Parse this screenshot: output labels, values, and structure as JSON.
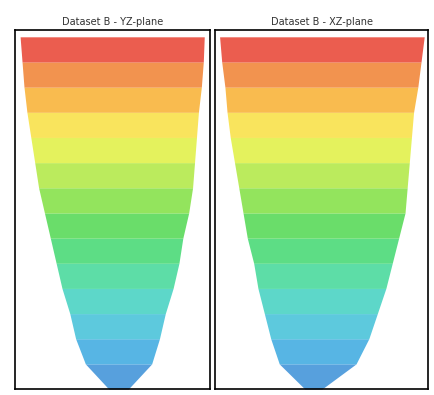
{
  "chart_data": [
    {
      "type": "area",
      "title": "Dataset B - YZ-plane",
      "y": [
        0,
        7,
        14,
        21,
        28,
        35,
        42,
        49,
        56,
        63,
        70,
        77,
        84,
        91,
        98
      ],
      "left": [
        48,
        36,
        31,
        28,
        24,
        21,
        18,
        15,
        12,
        10,
        8,
        6,
        4.5,
        3.5,
        2.5
      ],
      "right": [
        58,
        70,
        74,
        77,
        81,
        84,
        86,
        89,
        91,
        92,
        93,
        94,
        95.5,
        96.5,
        97
      ],
      "colors": [
        "#3a8fd8",
        "#3aa8e0",
        "#40c0d8",
        "#40d0c0",
        "#40d898",
        "#40d870",
        "#50d850",
        "#80e040",
        "#b0e840",
        "#e0f040",
        "#f8e040",
        "#f8b030",
        "#f08030",
        "#e84030"
      ],
      "xlim": [
        0,
        100
      ],
      "ylim": [
        0,
        100
      ],
      "tick_labels": false
    },
    {
      "type": "area",
      "title": "Dataset B - XZ-plane",
      "y": [
        0,
        7,
        14,
        21,
        28,
        35,
        42,
        49,
        56,
        63,
        70,
        77,
        84,
        91,
        98
      ],
      "left": [
        42,
        30,
        26,
        23,
        20,
        18,
        15,
        13,
        11,
        9,
        7,
        5.5,
        4.5,
        3,
        2
      ],
      "right": [
        50,
        66,
        72,
        76,
        80,
        83,
        86,
        89,
        90,
        91,
        92,
        93,
        95,
        96.5,
        98
      ],
      "colors": [
        "#3a8fd8",
        "#3aa8e0",
        "#40c0d8",
        "#40d0c0",
        "#40d898",
        "#40d870",
        "#50d850",
        "#80e040",
        "#b0e840",
        "#e0f040",
        "#f8e040",
        "#f8b030",
        "#f08030",
        "#e84030"
      ],
      "xlim": [
        0,
        100
      ],
      "ylim": [
        0,
        100
      ],
      "tick_labels": false
    }
  ]
}
